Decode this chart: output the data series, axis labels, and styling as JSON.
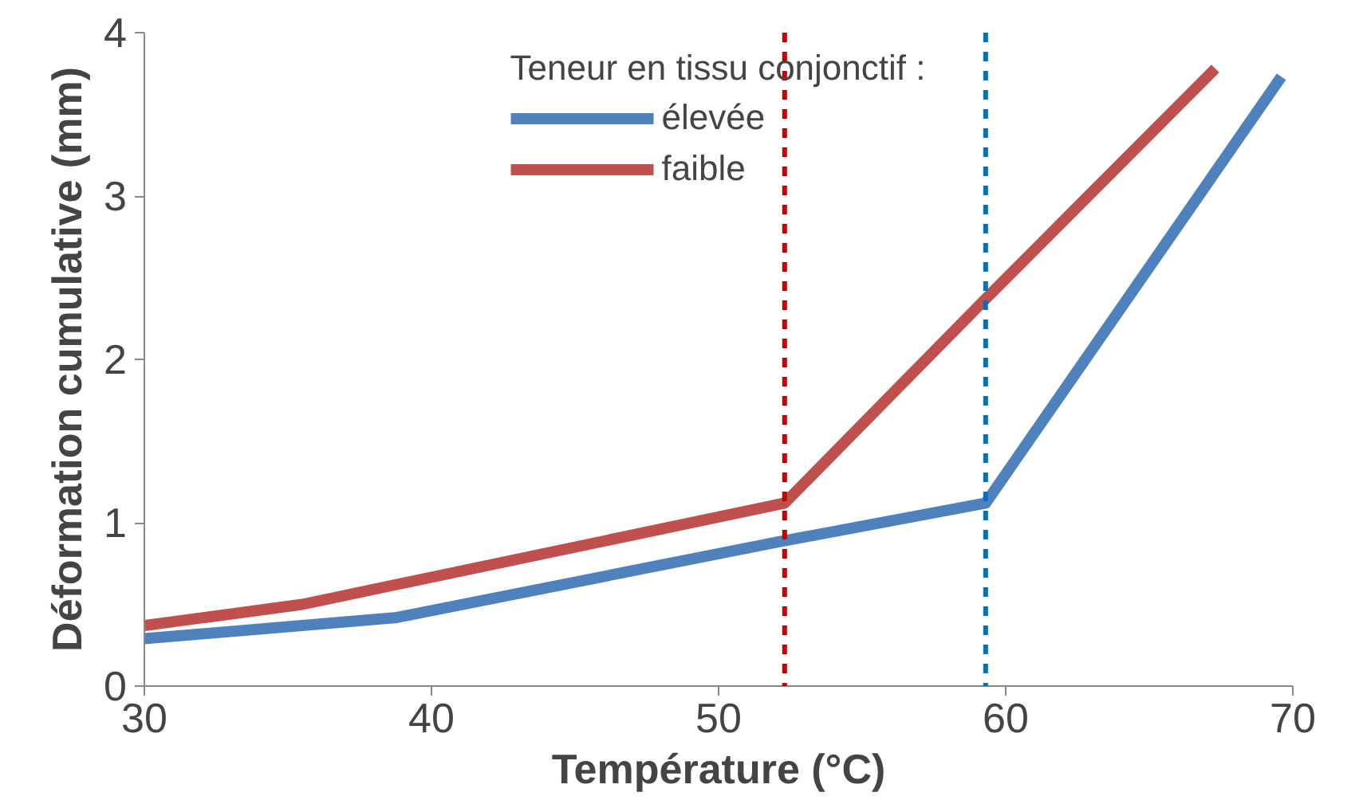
{
  "chart_data": {
    "type": "line",
    "xlabel": "Température (°C)",
    "ylabel": "Déformation cumulative (mm)",
    "legend_title": "Teneur en tissu conjonctif :",
    "xlim": [
      30,
      70
    ],
    "xticks": [
      30,
      40,
      50,
      60,
      70
    ],
    "ylim": [
      0,
      4
    ],
    "yticks": [
      0,
      1,
      2,
      3,
      4
    ],
    "grid": false,
    "legend": "top",
    "marker": "none",
    "line_style": "solid",
    "series": [
      {
        "name": "élevée",
        "color": "#4f81bd",
        "x": [
          30,
          38.8,
          52,
          59.3,
          69.6
        ],
        "values": [
          0.29,
          0.42,
          0.88,
          1.12,
          3.73
        ]
      },
      {
        "name": "faible",
        "color": "#c0504d",
        "x": [
          30,
          35.5,
          52.3,
          59.3,
          67.3
        ],
        "values": [
          0.37,
          0.5,
          1.12,
          2.37,
          3.78
        ]
      }
    ],
    "ref_lines": [
      {
        "axis": "x",
        "value": 52.3,
        "color": "#c00000",
        "line_style": "dashed"
      },
      {
        "axis": "x",
        "value": 59.3,
        "color": "#0070c0",
        "line_style": "dashed"
      }
    ]
  }
}
